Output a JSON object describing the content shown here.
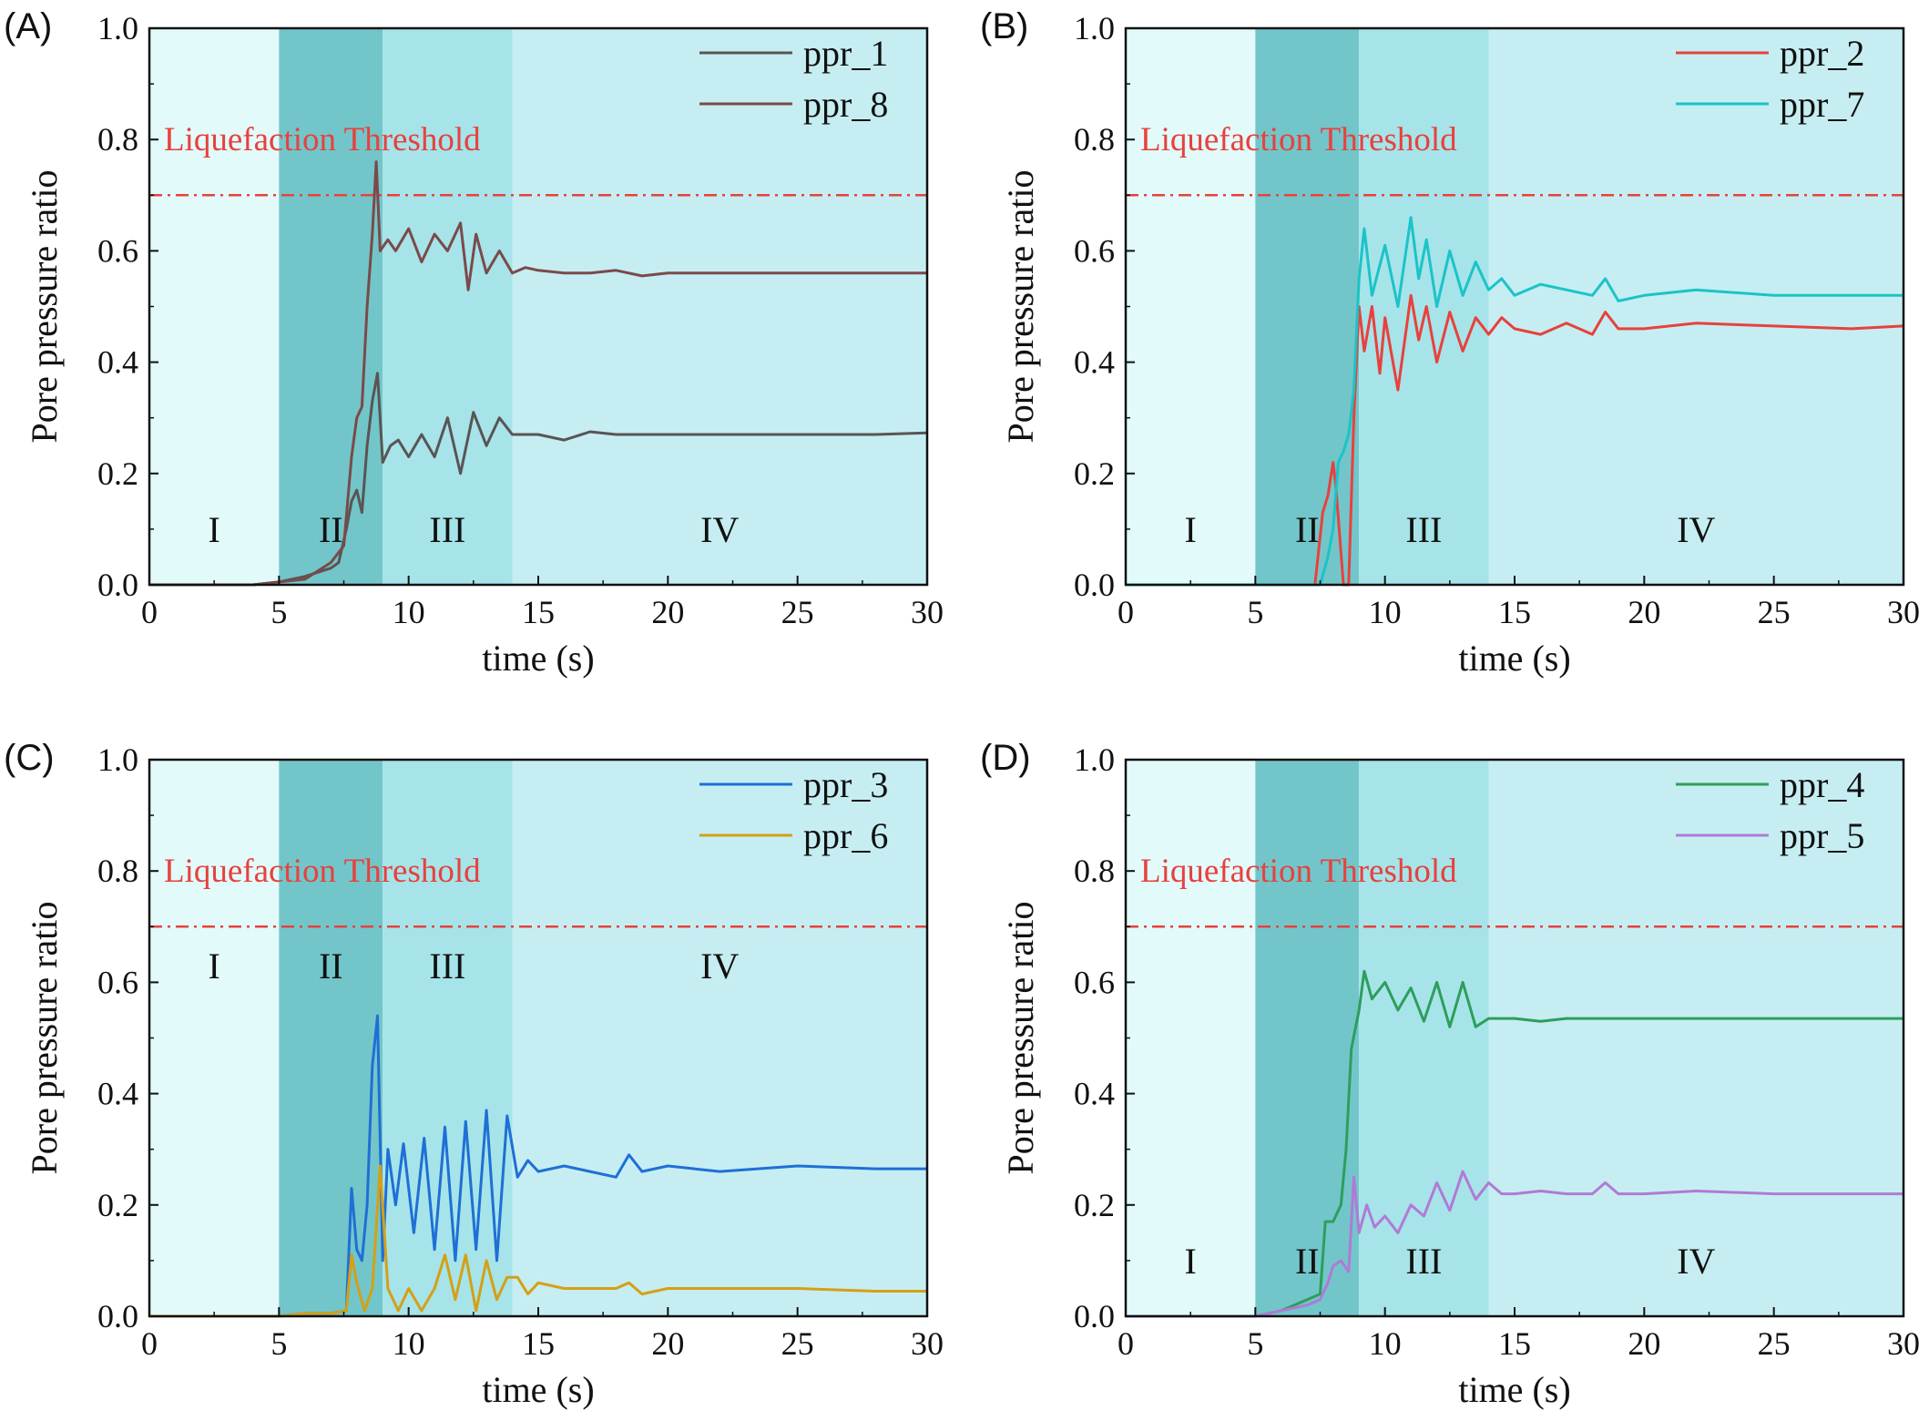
{
  "figure": {
    "shared": {
      "xlabel": "time (s)",
      "ylabel": "Pore pressure ratio",
      "threshold_label": "Liquefaction Threshold",
      "threshold_value": 0.7,
      "threshold_color": "#e8413d",
      "xlim": [
        0,
        30
      ],
      "ylim": [
        0,
        1.0
      ],
      "xticks": [
        0,
        5,
        10,
        15,
        20,
        25,
        30
      ],
      "yticks": [
        0.0,
        0.2,
        0.4,
        0.6,
        0.8,
        1.0
      ],
      "xtick_labels": [
        "0",
        "5",
        "10",
        "15",
        "20",
        "25",
        "30"
      ],
      "ytick_labels": [
        "0.0",
        "0.2",
        "0.4",
        "0.6",
        "0.8",
        "1.0"
      ],
      "stages": [
        {
          "label": "I",
          "start": 0,
          "end": 5,
          "color": "#e2fafa"
        },
        {
          "label": "II",
          "start": 5,
          "end": 9,
          "color": "#72c6c9"
        },
        {
          "label": "III",
          "start": 9,
          "end": 14,
          "color": "#a6e4e9"
        },
        {
          "label": "IV",
          "start": 14,
          "end": 30,
          "color": "#c6eef2"
        }
      ]
    }
  },
  "chart_data": [
    {
      "panel": "(A)",
      "type": "line",
      "stage_label_y": 0.1,
      "series": [
        {
          "name": "ppr_1",
          "color": "#5a5455",
          "x": [
            0,
            4,
            5,
            6,
            7,
            7.3,
            7.6,
            7.8,
            8.0,
            8.2,
            8.4,
            8.6,
            8.8,
            9.0,
            9.3,
            9.6,
            10,
            10.5,
            11,
            11.5,
            12,
            12.5,
            13,
            13.5,
            14,
            14.5,
            15,
            16,
            17,
            18,
            19,
            20,
            22,
            25,
            28,
            30
          ],
          "y": [
            0,
            0,
            0.005,
            0.015,
            0.03,
            0.04,
            0.1,
            0.15,
            0.17,
            0.13,
            0.25,
            0.33,
            0.38,
            0.22,
            0.25,
            0.26,
            0.23,
            0.27,
            0.23,
            0.3,
            0.2,
            0.31,
            0.25,
            0.3,
            0.27,
            0.27,
            0.27,
            0.26,
            0.275,
            0.27,
            0.27,
            0.27,
            0.27,
            0.27,
            0.27,
            0.273
          ]
        },
        {
          "name": "ppr_8",
          "color": "#7a4a4a",
          "x": [
            0,
            4,
            5,
            6,
            7,
            7.5,
            7.8,
            8.0,
            8.2,
            8.4,
            8.6,
            8.75,
            8.9,
            9.2,
            9.5,
            10,
            10.5,
            11,
            11.5,
            12,
            12.3,
            12.6,
            13,
            13.5,
            14,
            14.5,
            15,
            16,
            17,
            18,
            19,
            20,
            22,
            25,
            28,
            30
          ],
          "y": [
            0,
            0,
            0.005,
            0.01,
            0.04,
            0.07,
            0.23,
            0.3,
            0.32,
            0.5,
            0.63,
            0.76,
            0.6,
            0.62,
            0.6,
            0.64,
            0.58,
            0.63,
            0.6,
            0.65,
            0.53,
            0.63,
            0.56,
            0.6,
            0.56,
            0.57,
            0.565,
            0.56,
            0.56,
            0.565,
            0.555,
            0.56,
            0.56,
            0.56,
            0.56,
            0.56
          ]
        }
      ]
    },
    {
      "panel": "(B)",
      "type": "line",
      "stage_label_y": 0.1,
      "series": [
        {
          "name": "ppr_2",
          "color": "#e8413d",
          "x": [
            0,
            7.3,
            7.6,
            7.8,
            8.0,
            8.1,
            8.4,
            8.6,
            8.8,
            9.0,
            9.2,
            9.5,
            9.8,
            10,
            10.5,
            11,
            11.3,
            11.6,
            12,
            12.5,
            13,
            13.5,
            14,
            14.5,
            15,
            16,
            17,
            18,
            18.5,
            19,
            20,
            22,
            25,
            28,
            30
          ],
          "y": [
            0,
            0,
            0.13,
            0.16,
            0.22,
            0.18,
            0,
            0,
            0.3,
            0.5,
            0.42,
            0.5,
            0.38,
            0.48,
            0.35,
            0.52,
            0.44,
            0.5,
            0.4,
            0.49,
            0.42,
            0.48,
            0.45,
            0.48,
            0.46,
            0.45,
            0.47,
            0.45,
            0.49,
            0.46,
            0.46,
            0.47,
            0.465,
            0.46,
            0.465
          ]
        },
        {
          "name": "ppr_7",
          "color": "#1bc3c8",
          "x": [
            0,
            7.5,
            7.8,
            8.0,
            8.2,
            8.4,
            8.6,
            8.8,
            9.0,
            9.2,
            9.5,
            10,
            10.5,
            11,
            11.3,
            11.6,
            12,
            12.5,
            13,
            13.5,
            14,
            14.5,
            15,
            16,
            17,
            18,
            18.5,
            19,
            20,
            22,
            25,
            28,
            30
          ],
          "y": [
            0,
            0,
            0.05,
            0.1,
            0.22,
            0.24,
            0.27,
            0.35,
            0.55,
            0.64,
            0.52,
            0.61,
            0.5,
            0.66,
            0.55,
            0.62,
            0.5,
            0.6,
            0.52,
            0.58,
            0.53,
            0.55,
            0.52,
            0.54,
            0.53,
            0.52,
            0.55,
            0.51,
            0.52,
            0.53,
            0.52,
            0.52,
            0.52
          ]
        }
      ]
    },
    {
      "panel": "(C)",
      "type": "line",
      "stage_label_y": 0.63,
      "series": [
        {
          "name": "ppr_3",
          "color": "#1f6fd6",
          "x": [
            0,
            5,
            6,
            7,
            7.6,
            7.8,
            8.0,
            8.2,
            8.4,
            8.6,
            8.8,
            9.0,
            9.2,
            9.5,
            9.8,
            10.2,
            10.6,
            11,
            11.4,
            11.8,
            12.2,
            12.6,
            13,
            13.4,
            13.8,
            14.2,
            14.6,
            15,
            16,
            17,
            18,
            18.5,
            19,
            20,
            22,
            25,
            28,
            30
          ],
          "y": [
            0,
            0,
            0.005,
            0.005,
            0.01,
            0.23,
            0.12,
            0.1,
            0.2,
            0.45,
            0.54,
            0.1,
            0.3,
            0.2,
            0.31,
            0.15,
            0.32,
            0.12,
            0.34,
            0.1,
            0.35,
            0.12,
            0.37,
            0.1,
            0.36,
            0.25,
            0.28,
            0.26,
            0.27,
            0.26,
            0.25,
            0.29,
            0.26,
            0.27,
            0.26,
            0.27,
            0.265,
            0.265
          ]
        },
        {
          "name": "ppr_6",
          "color": "#d4a017",
          "x": [
            0,
            5,
            6,
            7,
            7.6,
            7.8,
            8.0,
            8.3,
            8.6,
            8.9,
            9.2,
            9.6,
            10,
            10.5,
            11,
            11.4,
            11.8,
            12.2,
            12.6,
            13,
            13.4,
            13.8,
            14.2,
            14.6,
            15,
            16,
            17,
            18,
            18.5,
            19,
            20,
            22,
            25,
            28,
            30
          ],
          "y": [
            0,
            0,
            0.005,
            0.005,
            0.01,
            0.11,
            0.06,
            0.01,
            0.05,
            0.27,
            0.05,
            0.01,
            0.05,
            0.01,
            0.05,
            0.11,
            0.03,
            0.11,
            0.01,
            0.1,
            0.03,
            0.07,
            0.07,
            0.04,
            0.06,
            0.05,
            0.05,
            0.05,
            0.06,
            0.04,
            0.05,
            0.05,
            0.05,
            0.045,
            0.045
          ]
        }
      ]
    },
    {
      "panel": "(D)",
      "type": "line",
      "stage_label_y": 0.1,
      "series": [
        {
          "name": "ppr_4",
          "color": "#2e9e5b",
          "x": [
            0,
            5,
            6,
            7,
            7.5,
            7.7,
            8.0,
            8.3,
            8.5,
            8.7,
            9.0,
            9.2,
            9.5,
            10,
            10.5,
            11,
            11.5,
            12,
            12.5,
            13,
            13.5,
            14,
            14.5,
            15,
            16,
            17,
            18,
            19,
            20,
            22,
            25,
            28,
            30
          ],
          "y": [
            0,
            0,
            0.01,
            0.03,
            0.04,
            0.17,
            0.17,
            0.2,
            0.3,
            0.48,
            0.55,
            0.62,
            0.57,
            0.6,
            0.55,
            0.59,
            0.53,
            0.6,
            0.52,
            0.6,
            0.52,
            0.535,
            0.535,
            0.535,
            0.53,
            0.535,
            0.535,
            0.535,
            0.535,
            0.535,
            0.535,
            0.535,
            0.535
          ]
        },
        {
          "name": "ppr_5",
          "color": "#b07ad6",
          "x": [
            0,
            5,
            6,
            7,
            7.5,
            7.8,
            8.0,
            8.3,
            8.6,
            8.8,
            9.0,
            9.3,
            9.6,
            10,
            10.5,
            11,
            11.5,
            12,
            12.5,
            13,
            13.5,
            14,
            14.5,
            15,
            16,
            17,
            18,
            18.5,
            19,
            20,
            22,
            25,
            28,
            30
          ],
          "y": [
            0,
            0,
            0.01,
            0.02,
            0.03,
            0.06,
            0.09,
            0.1,
            0.08,
            0.25,
            0.15,
            0.2,
            0.16,
            0.18,
            0.15,
            0.2,
            0.18,
            0.24,
            0.19,
            0.26,
            0.21,
            0.24,
            0.22,
            0.22,
            0.225,
            0.22,
            0.22,
            0.24,
            0.22,
            0.22,
            0.225,
            0.22,
            0.22,
            0.22
          ]
        }
      ]
    }
  ]
}
